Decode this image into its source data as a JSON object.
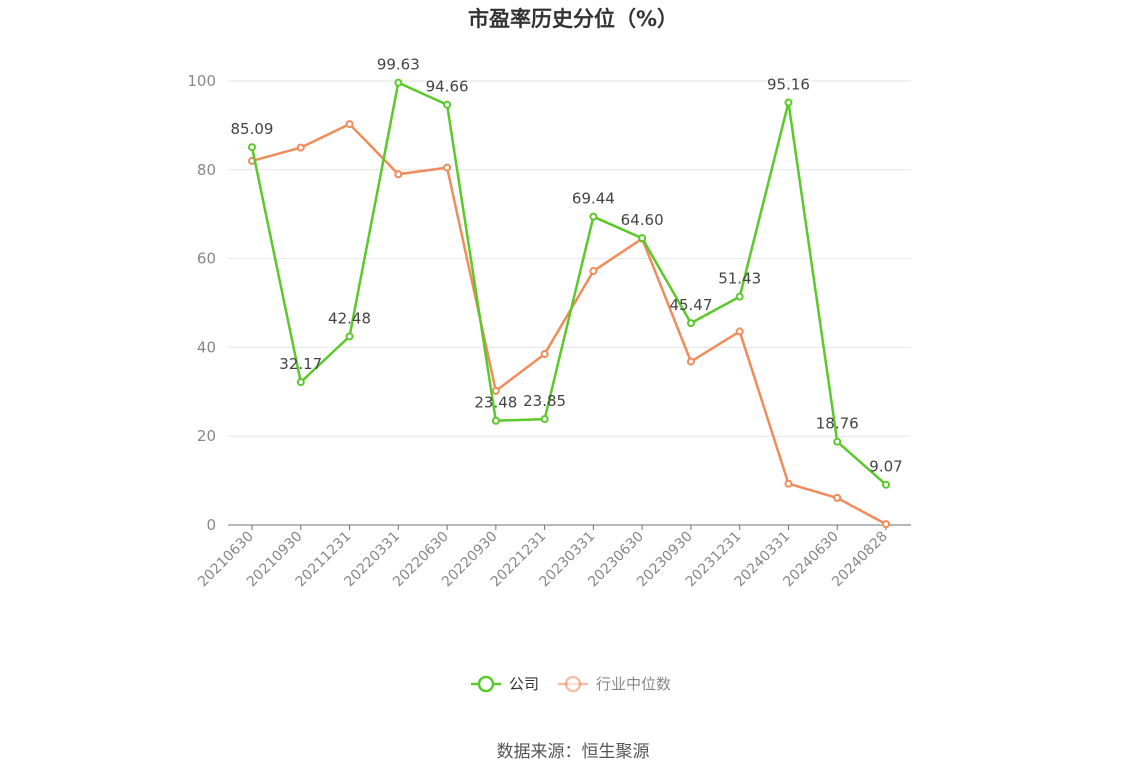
{
  "chart_data": {
    "type": "line",
    "title": "市盈率历史分位（%）",
    "xlabel": "",
    "ylabel": "",
    "ylim": [
      0,
      100
    ],
    "yticks": [
      0,
      20,
      40,
      60,
      80,
      100
    ],
    "grid": true,
    "legend_position": "bottom",
    "categories": [
      "20210630",
      "20210930",
      "20211231",
      "20220331",
      "20220630",
      "20220930",
      "20221231",
      "20230331",
      "20230630",
      "20230930",
      "20231231",
      "20240331",
      "20240630",
      "20240828"
    ],
    "series": [
      {
        "name": "公司",
        "color": "#5cc92a",
        "values": [
          85.09,
          32.17,
          42.48,
          99.63,
          94.66,
          23.48,
          23.85,
          69.44,
          64.6,
          45.47,
          51.43,
          95.16,
          18.76,
          9.07
        ],
        "labels": [
          "85.09",
          "32.17",
          "42.48",
          "99.63",
          "94.66",
          "23.48",
          "23.85",
          "69.44",
          "64.60",
          "45.47",
          "51.43",
          "95.16",
          "18.76",
          "9.07"
        ]
      },
      {
        "name": "行业中位数",
        "color": "#f08c5a",
        "values": [
          82.0,
          85.0,
          90.3,
          79.0,
          80.5,
          30.2,
          38.5,
          57.2,
          64.5,
          36.8,
          43.6,
          9.3,
          6.1,
          0.2
        ]
      }
    ]
  },
  "footer": {
    "source": "数据来源：恒生聚源"
  }
}
